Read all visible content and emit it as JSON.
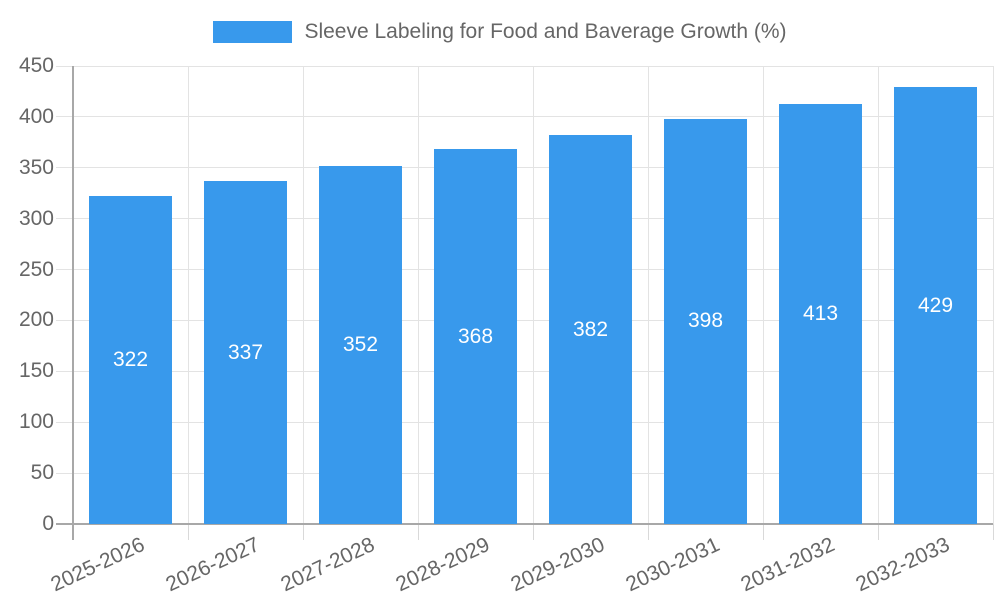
{
  "chart_data": {
    "type": "bar",
    "title": "Sleeve Labeling for Food and Baverage Growth (%)",
    "categories": [
      "2025-2026",
      "2026-2027",
      "2027-2028",
      "2028-2029",
      "2029-2030",
      "2030-2031",
      "2031-2032",
      "2032-2033"
    ],
    "values": [
      322,
      337,
      352,
      368,
      382,
      398,
      413,
      429
    ],
    "xlabel": "",
    "ylabel": "",
    "ylim": [
      0,
      450
    ],
    "ytick_step": 50,
    "grid": true,
    "legend_position": "top",
    "colors": {
      "bar": "#3899EC",
      "value_label": "#ffffff",
      "axis_text": "#666666",
      "grid_line": "#e3e3e3",
      "tick_line": "#d9d9d9",
      "axis_line": "#a8a8a8",
      "background": "#ffffff"
    }
  }
}
